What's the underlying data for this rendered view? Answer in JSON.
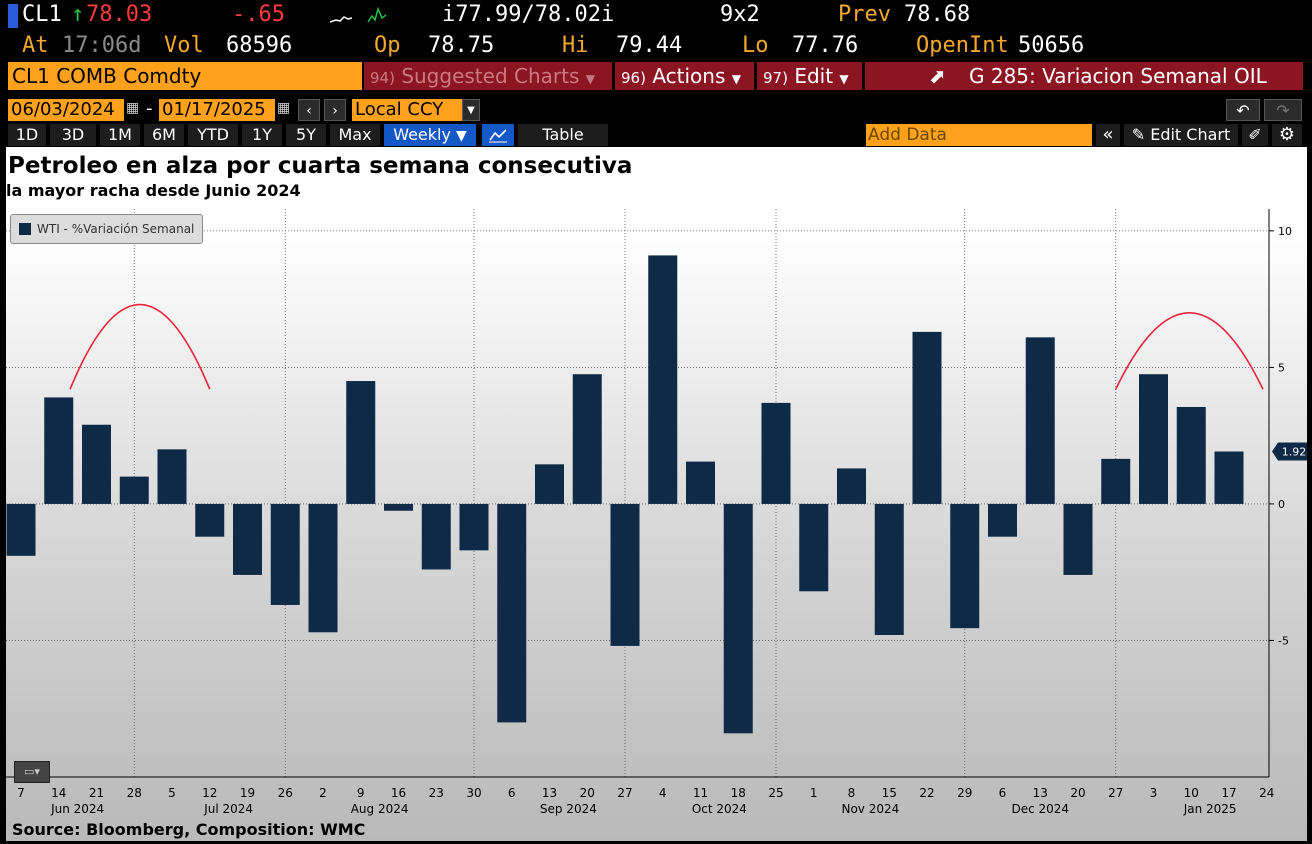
{
  "header": {
    "ticker": "CL1",
    "last": "78.03",
    "change": "-.65",
    "bid_ask": "i77.99/78.02i",
    "size": "9x2",
    "prev_label": "Prev",
    "prev": "78.68",
    "at_label": "At",
    "time": "17:06d",
    "vol_label": "Vol",
    "vol": "68596",
    "op_label": "Op",
    "op": "78.75",
    "hi_label": "Hi",
    "hi": "79.44",
    "lo_label": "Lo",
    "lo": "77.76",
    "oi_label": "OpenInt",
    "oi": "50656"
  },
  "toolbar": {
    "security": "CL1 COMB Comdty",
    "suggested_num": "94)",
    "suggested_label": "Suggested Charts",
    "actions_num": "96)",
    "actions_label": "Actions",
    "edit_num": "97)",
    "edit_label": "Edit",
    "chart_title": "G 285: Variacion Semanal OIL"
  },
  "dates": {
    "start": "06/03/2024",
    "end": "01/17/2025",
    "currency": "Local CCY"
  },
  "ranges": [
    "1D",
    "3D",
    "1M",
    "6M",
    "YTD",
    "1Y",
    "5Y",
    "Max"
  ],
  "period": "Weekly",
  "table_label": "Table",
  "add_data_placeholder": "Add Data",
  "edit_chart_label": "Edit Chart",
  "chart_data": {
    "type": "bar",
    "title": "Petroleo en alza por cuarta semana consecutiva",
    "subtitle": "la mayor racha desde Junio 2024",
    "source": "Source: Bloomberg, Composition: WMC",
    "legend": "WTI - %Variación Semanal",
    "legend_position": "top-left",
    "last_value_label": "1.92",
    "ylim": [
      -10,
      10.8
    ],
    "yticks": [
      10,
      5,
      0,
      -5
    ],
    "categories": [
      "7",
      "14",
      "21",
      "28",
      "5",
      "12",
      "19",
      "26",
      "2",
      "9",
      "16",
      "23",
      "30",
      "6",
      "13",
      "20",
      "27",
      "4",
      "11",
      "18",
      "25",
      "1",
      "8",
      "15",
      "22",
      "29",
      "6",
      "13",
      "20",
      "27",
      "3",
      "10",
      "17",
      "24"
    ],
    "values": [
      -1.9,
      3.9,
      2.9,
      1.0,
      2.0,
      -1.2,
      -2.6,
      -3.7,
      -4.7,
      4.5,
      -0.25,
      -2.4,
      -1.7,
      -8.0,
      1.45,
      4.75,
      -5.2,
      9.1,
      1.55,
      -8.4,
      3.7,
      -3.2,
      1.3,
      -4.8,
      6.3,
      -4.55,
      -1.2,
      6.1,
      -2.6,
      1.65,
      4.75,
      3.55,
      1.92,
      null
    ],
    "month_labels": [
      {
        "label": "Jun 2024",
        "index": 1.5
      },
      {
        "label": "Jul 2024",
        "index": 5.5
      },
      {
        "label": "Aug 2024",
        "index": 9.5
      },
      {
        "label": "Sep 2024",
        "index": 14.5
      },
      {
        "label": "Oct 2024",
        "index": 18.5
      },
      {
        "label": "Nov 2024",
        "index": 22.5
      },
      {
        "label": "Dec 2024",
        "index": 27.0
      },
      {
        "label": "Jan 2025",
        "index": 31.5
      }
    ],
    "vgrid_indices": [
      3,
      7,
      12,
      16,
      20,
      25,
      29
    ],
    "annotations": [
      {
        "type": "arc",
        "from": 1.3,
        "to": 5.0,
        "base": 4.2,
        "peak": 7.3
      },
      {
        "type": "arc",
        "from": 29.0,
        "to": 32.9,
        "base": 4.2,
        "peak": 7.0
      }
    ],
    "colors": {
      "bar": "#0f2a47",
      "arc": "#e8253a"
    }
  }
}
